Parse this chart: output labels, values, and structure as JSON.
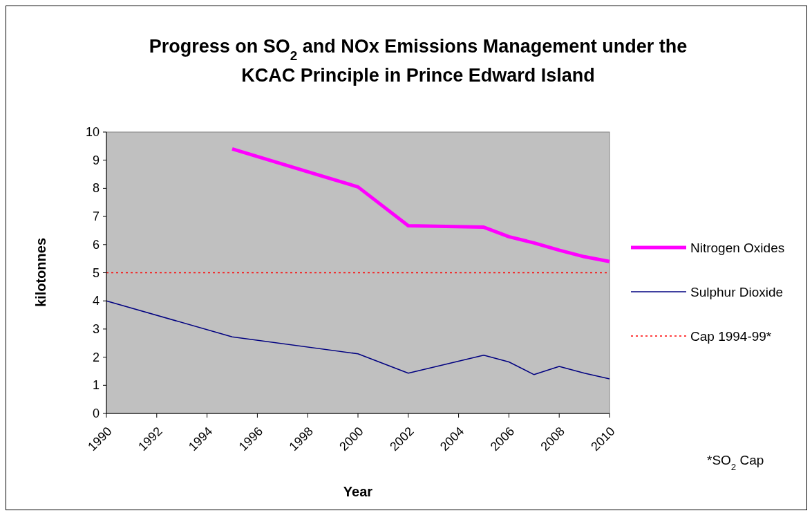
{
  "chart_data": {
    "type": "line",
    "title": "Progress on SO$_{2}$ and NOx Emissions Management under the KCAC Principle in Prince Edward Island",
    "xlabel": "Year",
    "ylabel": "kilotonnes",
    "x": [
      1990,
      1995,
      2000,
      2002,
      2005,
      2006,
      2007,
      2008,
      2009,
      2010
    ],
    "series": [
      {
        "name": "Nitrogen Oxides",
        "color": "#ff00ff",
        "values": [
          null,
          9.4,
          8.05,
          6.67,
          6.62,
          6.28,
          6.06,
          5.8,
          5.57,
          5.4
        ]
      },
      {
        "name": "Sulphur Dioxide",
        "color": "#000080",
        "values": [
          4.0,
          2.72,
          2.12,
          1.43,
          2.07,
          1.83,
          1.38,
          1.67,
          1.43,
          1.23
        ]
      }
    ],
    "ref_lines": [
      {
        "axis": "y",
        "value": 5,
        "label": "Cap 1994-99*",
        "color": "#ff0000",
        "line_style": "dotted"
      }
    ],
    "annotations": [
      "*SO$_{2}$ Cap"
    ],
    "xlim": [
      1990,
      2010
    ],
    "xticks": [
      1990,
      1992,
      1994,
      1996,
      1998,
      2000,
      2002,
      2004,
      2006,
      2008,
      2010
    ],
    "ylim": [
      0,
      10
    ],
    "yticks": [
      0,
      1,
      2,
      3,
      4,
      5,
      6,
      7,
      8,
      9,
      10
    ],
    "legend": "right",
    "grid": false,
    "marker": "none",
    "line_style": "solid"
  }
}
